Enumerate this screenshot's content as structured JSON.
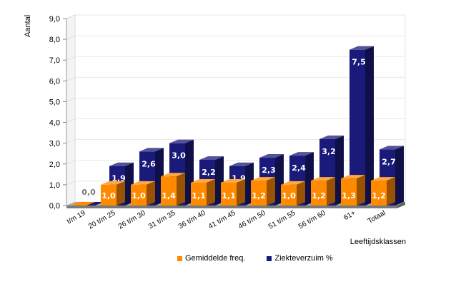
{
  "chart_data": {
    "type": "bar",
    "xlabel": "Leeftijdsklassen",
    "ylabel": "Aantal",
    "ylim": [
      0,
      9
    ],
    "yticks": [
      "0,0",
      "1,0",
      "2,0",
      "3,0",
      "4,0",
      "5,0",
      "6,0",
      "7,0",
      "8,0",
      "9,0"
    ],
    "grid": true,
    "legend_position": "bottom",
    "categories": [
      "t/m 19",
      "20 t/m 25",
      "26 t/m 30",
      "31 t/m 35",
      "36 t/m 40",
      "41 t/m 45",
      "46 t/m 50",
      "51 t/m 55",
      "56 t/m 60",
      "61+",
      "Totaal"
    ],
    "series": [
      {
        "name": "Gemiddelde freq.",
        "color": "#ff8a00",
        "values": [
          0.0,
          1.0,
          1.0,
          1.4,
          1.1,
          1.1,
          1.2,
          1.0,
          1.2,
          1.3,
          1.2
        ],
        "labels": [
          "",
          "1,0",
          "1,0",
          "1,4",
          "1,1",
          "1,1",
          "1,2",
          "1,0",
          "1,2",
          "1,3",
          "1,2"
        ]
      },
      {
        "name": "Ziekteverzuim %",
        "color": "#1a1a7a",
        "values": [
          0.0,
          1.9,
          2.6,
          3.0,
          2.2,
          1.9,
          2.3,
          2.4,
          3.2,
          7.5,
          2.7
        ],
        "labels": [
          "0,0",
          "1,9",
          "2,6",
          "3,0",
          "2,2",
          "1,9",
          "2,3",
          "2,4",
          "3,2",
          "7,5",
          "2,7"
        ]
      }
    ]
  }
}
